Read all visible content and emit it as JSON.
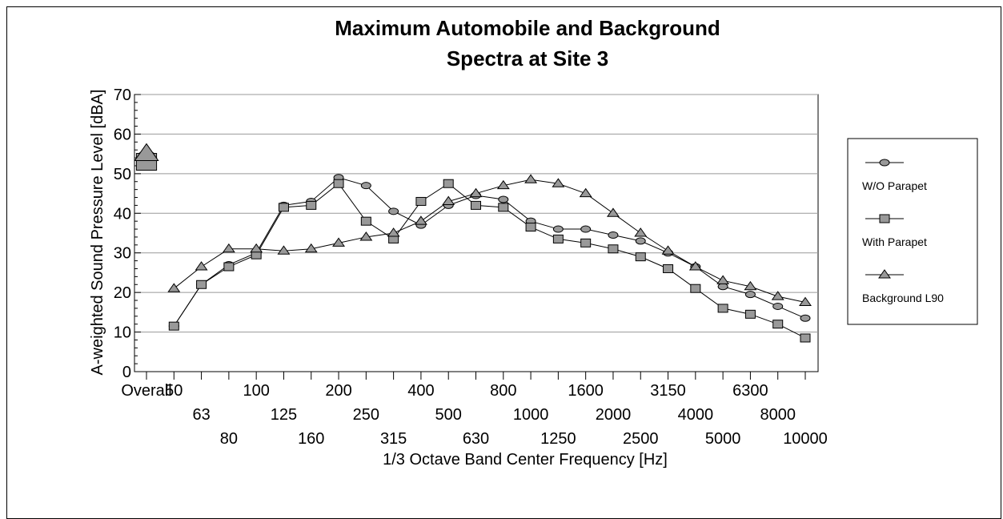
{
  "chart_data": {
    "type": "line",
    "title_line1": "Maximum Automobile and Background",
    "title_line2": "Spectra at Site 3",
    "xlabel": "1/3 Octave Band Center Frequency [Hz]",
    "ylabel": "A-weighted Sound Pressure Level [dBA]",
    "ylim": [
      0,
      70
    ],
    "yticks": [
      "0",
      "10",
      "20",
      "30",
      "40",
      "50",
      "60",
      "70"
    ],
    "categories": [
      "Overall",
      "50",
      "63",
      "80",
      "100",
      "125",
      "160",
      "200",
      "250",
      "315",
      "400",
      "500",
      "630",
      "800",
      "1000",
      "1250",
      "1600",
      "2000",
      "2500",
      "3150",
      "4000",
      "5000",
      "6300",
      "8000",
      "10000"
    ],
    "grid": "horizontal",
    "legend_position": "right",
    "series": [
      {
        "name": "W/O Parapet",
        "marker": "circle",
        "overall": 54,
        "values": [
          null,
          11.5,
          22,
          27,
          30,
          42,
          43,
          49,
          47,
          40.5,
          37,
          42,
          44.5,
          43.5,
          38,
          36,
          36,
          34.5,
          33,
          30,
          26.5,
          21.5,
          19.5,
          16.5,
          13.5
        ]
      },
      {
        "name": "With Parapet",
        "marker": "square",
        "overall": 53,
        "values": [
          null,
          11.5,
          22,
          26.5,
          29.5,
          41.5,
          42,
          47.5,
          38,
          33.5,
          43,
          47.5,
          42,
          41.5,
          36.5,
          33.5,
          32.5,
          31,
          29,
          26,
          21,
          16,
          14.5,
          12,
          8.5
        ]
      },
      {
        "name": "Background L90",
        "marker": "triangle",
        "overall": 55,
        "values": [
          null,
          21,
          26.5,
          31,
          31,
          30.5,
          31,
          32.5,
          34,
          35,
          38,
          43,
          45,
          47,
          48.5,
          47.5,
          45,
          40,
          35,
          30.5,
          26.5,
          23,
          21.5,
          19,
          17.5
        ]
      }
    ]
  }
}
